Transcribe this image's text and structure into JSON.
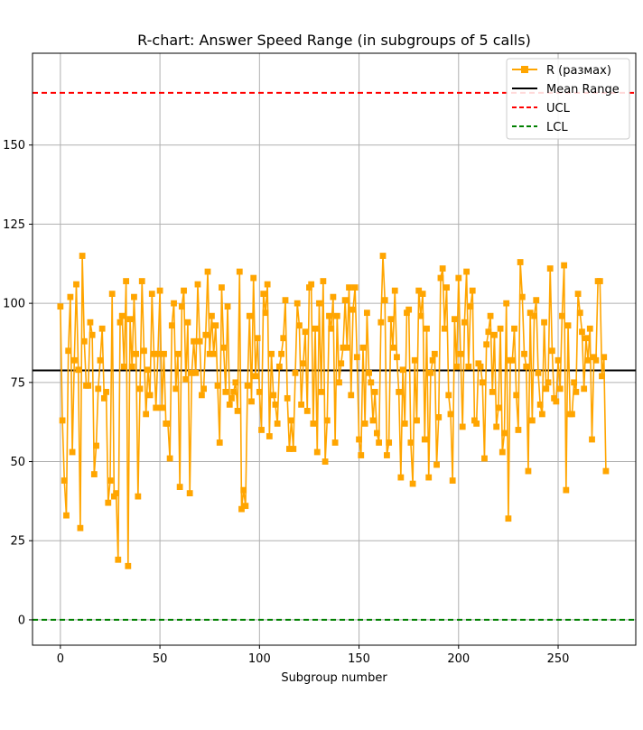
{
  "chart_data": {
    "type": "line",
    "title": "R-chart: Answer Speed Range (in subgroups of 5 calls)",
    "xlabel": "Subgroup number",
    "ylabel": "",
    "xlim": [
      -14,
      289
    ],
    "ylim": [
      -8,
      179
    ],
    "xticks": [
      0,
      50,
      100,
      150,
      200,
      250
    ],
    "yticks": [
      0,
      25,
      50,
      75,
      100,
      125,
      150
    ],
    "grid": true,
    "legend_position": "top-right",
    "colors": {
      "series": "#ffa500",
      "mean": "#000000",
      "ucl": "#ff0000",
      "lcl": "#008000"
    },
    "series": [
      {
        "name": "R (размах)",
        "marker": "square",
        "x_start": 0,
        "values": [
          99,
          63,
          44,
          33,
          85,
          102,
          53,
          82,
          106,
          79,
          29,
          115,
          88,
          74,
          74,
          94,
          90,
          46,
          55,
          73,
          82,
          92,
          70,
          72,
          37,
          44,
          103,
          39,
          40,
          19,
          94,
          96,
          80,
          107,
          17,
          95,
          80,
          102,
          84,
          39,
          73,
          107,
          85,
          65,
          79,
          71,
          103,
          84,
          67,
          84,
          104,
          67,
          84,
          62,
          62,
          51,
          93,
          100,
          73,
          84,
          42,
          99,
          104,
          76,
          94,
          40,
          78,
          88,
          78,
          106,
          88,
          71,
          73,
          90,
          110,
          84,
          96,
          84,
          93,
          74,
          56,
          105,
          86,
          72,
          99,
          68,
          70,
          72,
          75,
          66,
          110,
          35,
          41,
          36,
          74,
          96,
          69,
          108,
          77,
          89,
          72,
          60,
          103,
          97,
          106,
          58,
          84,
          71,
          68,
          62,
          80,
          84,
          89,
          101,
          70,
          54,
          63,
          54,
          78,
          100,
          93,
          68,
          81,
          91,
          66,
          105,
          106,
          62,
          92,
          53,
          100,
          72,
          107,
          50,
          63,
          96,
          92,
          102,
          56,
          96,
          75,
          81,
          86,
          101,
          86,
          105,
          71,
          98,
          105,
          83,
          57,
          52,
          86,
          62,
          97,
          78,
          75,
          63,
          72,
          59,
          56,
          94,
          115,
          101,
          52,
          56,
          95,
          86,
          104,
          83,
          72,
          45,
          79,
          62,
          97,
          98,
          56,
          43,
          82,
          63,
          104,
          96,
          103,
          57,
          92,
          45,
          78,
          82,
          84,
          49,
          64,
          108,
          111,
          92,
          105,
          71,
          65,
          44,
          95,
          80,
          108,
          84,
          61,
          94,
          110,
          80,
          99,
          104,
          63,
          62,
          81,
          80,
          75,
          51,
          87,
          91,
          96,
          72,
          90,
          61,
          67,
          92,
          53,
          59,
          100,
          32,
          82,
          82,
          92,
          71,
          60,
          113,
          102,
          84,
          80,
          47,
          97,
          63,
          96,
          101,
          78,
          68,
          65,
          94,
          73,
          75,
          111,
          85,
          70,
          69,
          82,
          73,
          96,
          112,
          41,
          93,
          65,
          65,
          75,
          72,
          103,
          97,
          91,
          73,
          89,
          82,
          92,
          57,
          83,
          82,
          107,
          107,
          77,
          83,
          47
        ]
      },
      {
        "name": "Mean Range",
        "value": 78.8
      },
      {
        "name": "UCL",
        "value": 166.5
      },
      {
        "name": "LCL",
        "value": 0
      }
    ]
  }
}
